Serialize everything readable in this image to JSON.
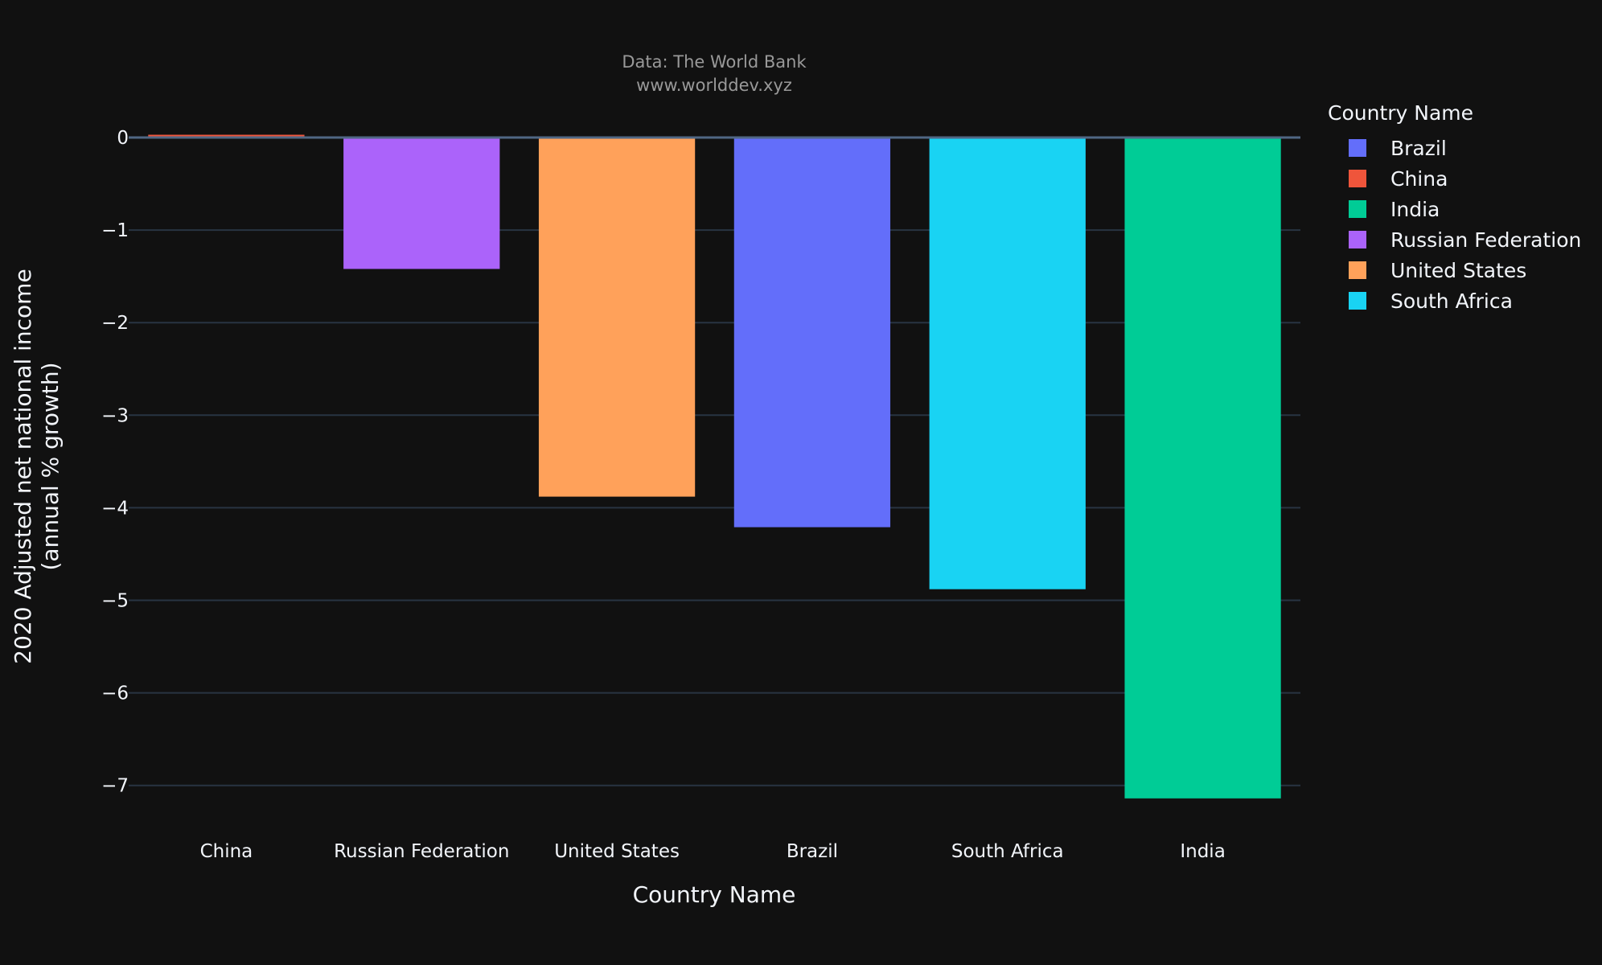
{
  "chart_data": {
    "type": "bar",
    "title": "Data: The World Bank",
    "subtitle": "www.worlddev.xyz",
    "xlabel": "Country Name",
    "ylabel_line1": "2020 Adjusted net national income",
    "ylabel_line2": "(annual % growth)",
    "categories": [
      "China",
      "Russian Federation",
      "United States",
      "Brazil",
      "South Africa",
      "India"
    ],
    "values": [
      0.03,
      -1.42,
      -3.88,
      -4.21,
      -4.88,
      -7.14
    ],
    "colors": [
      "#EF553B",
      "#AB63FA",
      "#FFA15A",
      "#636EFA",
      "#19D3F3",
      "#00CC96"
    ],
    "ylim": [
      -7.4,
      0.2
    ],
    "yticks": [
      0,
      -1,
      -2,
      -3,
      -4,
      -5,
      -6,
      -7
    ],
    "ytick_labels": [
      "0",
      "−1",
      "−2",
      "−3",
      "−4",
      "−5",
      "−6",
      "−7"
    ],
    "grid": true,
    "legend_position": "right",
    "legend": {
      "title": "Country Name",
      "items": [
        {
          "name": "Brazil",
          "color": "#636EFA"
        },
        {
          "name": "China",
          "color": "#EF553B"
        },
        {
          "name": "India",
          "color": "#00CC96"
        },
        {
          "name": "Russian Federation",
          "color": "#AB63FA"
        },
        {
          "name": "United States",
          "color": "#FFA15A"
        },
        {
          "name": "South Africa",
          "color": "#19D3F3"
        }
      ]
    }
  }
}
